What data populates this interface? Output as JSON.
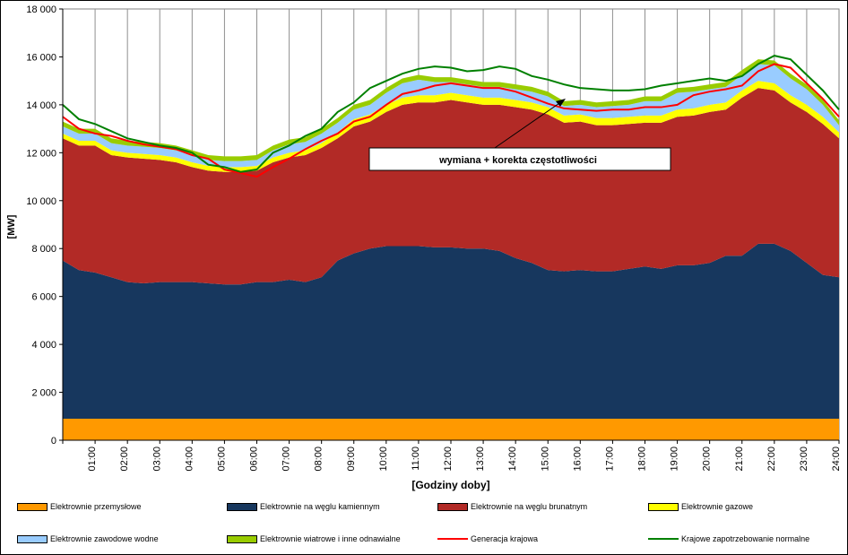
{
  "chart_data": {
    "type": "area",
    "ylabel": "[MW]",
    "xlabel": "[Godziny doby]",
    "ylim": [
      0,
      18000
    ],
    "yticks": [
      "0",
      "2 000",
      "4 000",
      "6 000",
      "8 000",
      "10 000",
      "12 000",
      "14 000",
      "16 000",
      "18 000"
    ],
    "xticks": [
      "01:00",
      "02:00",
      "03:00",
      "04:00",
      "05:00",
      "06:00",
      "07:00",
      "08:00",
      "09:00",
      "10:00",
      "11:00",
      "12:00",
      "13:00",
      "14:00",
      "15:00",
      "16:00",
      "17:00",
      "18:00",
      "19:00",
      "20:00",
      "21:00",
      "22:00",
      "23:00",
      "24:00"
    ],
    "x_hours": [
      0,
      0.5,
      1,
      1.5,
      2,
      2.5,
      3,
      3.5,
      4,
      4.5,
      5,
      5.5,
      6,
      6.5,
      7,
      7.5,
      8,
      8.5,
      9,
      9.5,
      10,
      10.5,
      11,
      11.5,
      12,
      12.5,
      13,
      13.5,
      14,
      14.5,
      15,
      15.5,
      16,
      16.5,
      17,
      17.5,
      18,
      18.5,
      19,
      19.5,
      20,
      20.5,
      21,
      21.5,
      22,
      22.5,
      23,
      23.5,
      24
    ],
    "grid": true,
    "legend_position": "bottom",
    "annotation": "wymiana + korekta częstotliwości",
    "colors": {
      "przemyslowe": "#ff9900",
      "kamienny": "#17375e",
      "brunatny": "#b22a26",
      "gazowe": "#ffff00",
      "wodne": "#99ccff",
      "wiatrowe": "#99cc00",
      "generacja": "#ff0000",
      "zapotrzebowanie": "#008000"
    },
    "series": [
      {
        "name": "Elektrownie przemysłowe",
        "kind": "area",
        "color_key": "przemyslowe",
        "values": [
          900,
          900,
          900,
          900,
          900,
          900,
          900,
          900,
          900,
          900,
          900,
          900,
          900,
          900,
          900,
          900,
          900,
          900,
          900,
          900,
          900,
          900,
          900,
          900,
          900,
          900,
          900,
          900,
          900,
          900,
          900,
          900,
          900,
          900,
          900,
          900,
          900,
          900,
          900,
          900,
          900,
          900,
          900,
          900,
          900,
          900,
          900,
          900,
          900
        ]
      },
      {
        "name": "Elektrownie na węglu kamiennym",
        "kind": "area",
        "color_key": "kamienny",
        "values": [
          6600,
          6200,
          6100,
          5900,
          5700,
          5650,
          5700,
          5700,
          5700,
          5650,
          5600,
          5600,
          5700,
          5700,
          5800,
          5700,
          5900,
          6600,
          6900,
          7100,
          7200,
          7200,
          7200,
          7150,
          7150,
          7100,
          7100,
          7000,
          6700,
          6500,
          6200,
          6150,
          6200,
          6150,
          6150,
          6250,
          6350,
          6250,
          6400,
          6400,
          6500,
          6800,
          6800,
          7300,
          7300,
          7000,
          6500,
          6000,
          5900
        ]
      },
      {
        "name": "Elektrownie na węglu brunatnym",
        "kind": "area",
        "color_key": "brunatny",
        "values": [
          5100,
          5200,
          5300,
          5100,
          5200,
          5200,
          5100,
          5000,
          4800,
          4700,
          4700,
          4700,
          4650,
          5000,
          5100,
          5300,
          5400,
          5100,
          5300,
          5300,
          5600,
          5900,
          6000,
          6050,
          6150,
          6100,
          6000,
          6100,
          6300,
          6400,
          6500,
          6200,
          6200,
          6100,
          6100,
          6050,
          6000,
          6100,
          6200,
          6250,
          6300,
          6100,
          6600,
          6500,
          6400,
          6200,
          6300,
          6300,
          5800
        ]
      },
      {
        "name": "Elektrownie gazowe",
        "kind": "area",
        "color_key": "gazowe",
        "values": [
          200,
          200,
          200,
          200,
          200,
          200,
          200,
          200,
          200,
          200,
          200,
          200,
          200,
          200,
          200,
          200,
          200,
          250,
          300,
          300,
          300,
          300,
          300,
          300,
          300,
          300,
          300,
          300,
          300,
          300,
          300,
          300,
          300,
          300,
          300,
          300,
          300,
          300,
          300,
          300,
          300,
          300,
          300,
          300,
          300,
          300,
          300,
          300,
          250
        ]
      },
      {
        "name": "Elektrownie zawodowe wodne",
        "kind": "area",
        "color_key": "wodne",
        "values": [
          300,
          300,
          300,
          300,
          300,
          300,
          300,
          300,
          300,
          250,
          250,
          250,
          250,
          300,
          350,
          350,
          400,
          400,
          400,
          400,
          500,
          600,
          650,
          550,
          450,
          450,
          450,
          450,
          450,
          450,
          450,
          400,
          400,
          450,
          500,
          500,
          600,
          600,
          700,
          700,
          650,
          650,
          650,
          700,
          750,
          700,
          650,
          500,
          300
        ]
      },
      {
        "name": "Elektrownie wiatrowe i inne odnawialne",
        "kind": "area",
        "color_key": "wiatrowe",
        "values": [
          200,
          200,
          200,
          200,
          200,
          200,
          200,
          200,
          200,
          200,
          200,
          200,
          200,
          200,
          200,
          200,
          200,
          200,
          200,
          200,
          200,
          200,
          200,
          200,
          200,
          200,
          200,
          200,
          200,
          200,
          200,
          200,
          200,
          200,
          200,
          200,
          200,
          200,
          200,
          200,
          200,
          200,
          200,
          200,
          200,
          200,
          200,
          200,
          200
        ]
      },
      {
        "name": "Generacja krajowa",
        "kind": "line",
        "color_key": "generacja",
        "values": [
          13500,
          13000,
          12800,
          12700,
          12500,
          12350,
          12250,
          12150,
          11900,
          11750,
          11300,
          11150,
          11000,
          11400,
          11750,
          12150,
          12500,
          12800,
          13300,
          13500,
          14000,
          14450,
          14600,
          14800,
          14900,
          14800,
          14700,
          14700,
          14550,
          14300,
          14050,
          13850,
          13800,
          13750,
          13800,
          13800,
          13900,
          13900,
          14000,
          14400,
          14550,
          14650,
          14800,
          15400,
          15700,
          15550,
          14900,
          14250,
          13500
        ]
      },
      {
        "name": "Krajowe zapotrzebowanie normalne",
        "kind": "line",
        "color_key": "zapotrzebowanie",
        "values": [
          14000,
          13400,
          13200,
          12900,
          12600,
          12450,
          12300,
          12200,
          12000,
          11500,
          11400,
          11200,
          11300,
          12000,
          12300,
          12700,
          13000,
          13700,
          14100,
          14700,
          15000,
          15300,
          15500,
          15600,
          15550,
          15400,
          15450,
          15600,
          15500,
          15200,
          15050,
          14850,
          14700,
          14650,
          14600,
          14600,
          14650,
          14800,
          14900,
          15000,
          15100,
          15000,
          15200,
          15700,
          16050,
          15900,
          15250,
          14600,
          13800
        ]
      }
    ]
  }
}
